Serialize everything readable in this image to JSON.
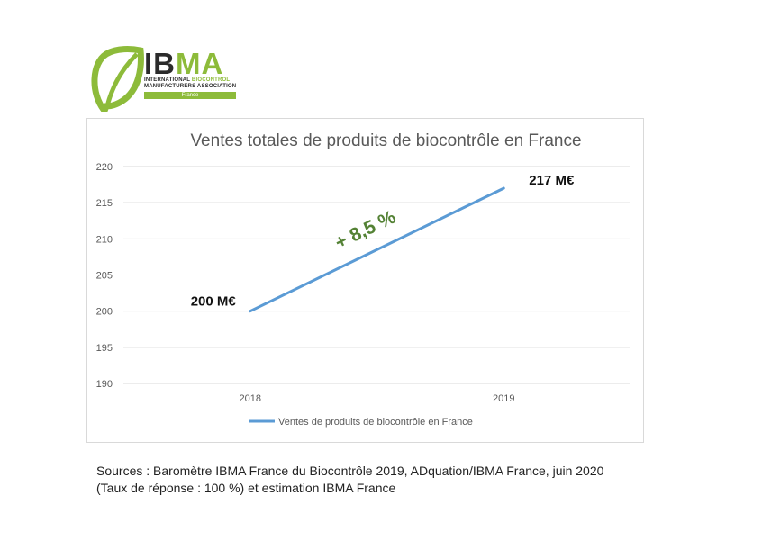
{
  "logo": {
    "title_part1": "IB",
    "title_part2": "MA",
    "line1_part1": "INTERNATIONAL ",
    "line1_part2": "BIOCONTROL",
    "line2": "MANUFACTURERS ASSOCIATION",
    "country": "France",
    "brand_color": "#8dbb3a"
  },
  "chart_data": {
    "type": "line",
    "title": "Ventes totales de produits de biocontrôle en France",
    "categories": [
      "2018",
      "2019"
    ],
    "series": [
      {
        "name": "Ventes de produits de biocontrôle en France",
        "values": [
          200,
          217
        ],
        "color": "#5b9bd5"
      }
    ],
    "ylim": [
      190,
      220
    ],
    "yticks": [
      "190",
      "195",
      "200",
      "205",
      "210",
      "215",
      "220"
    ],
    "grid": true,
    "legend_position": "bottom",
    "data_labels": [
      "200 M€",
      "217 M€"
    ],
    "annotation": "+ 8,5 %",
    "annotation_color": "#548235"
  },
  "sources": {
    "line1": "Sources : Baromètre IBMA France du Biocontrôle 2019, ADquation/IBMA France, juin 2020",
    "line2": "(Taux de réponse : 100 %) et estimation IBMA France"
  }
}
